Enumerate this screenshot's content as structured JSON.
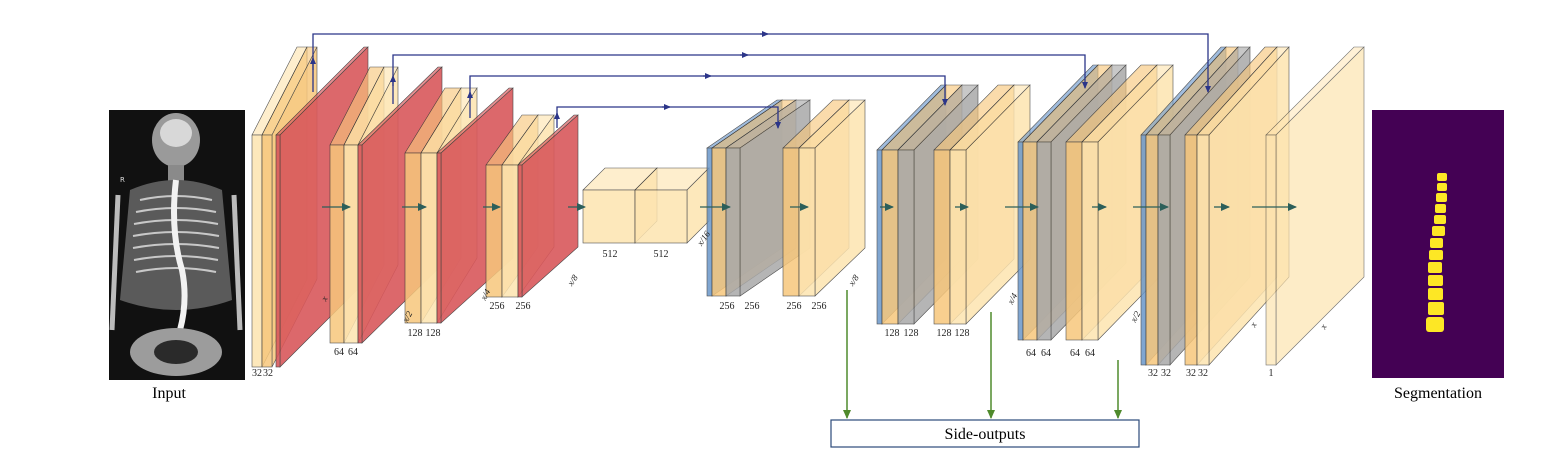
{
  "captions": {
    "input": "Input",
    "segmentation": "Segmentation",
    "side_outputs": "Side-outputs"
  },
  "encoder": [
    {
      "channels": [
        "32",
        "32"
      ],
      "size": ""
    },
    {
      "channels": [
        "64",
        "64"
      ],
      "size": "x"
    },
    {
      "channels": [
        "128",
        "128"
      ],
      "size": "x/2"
    },
    {
      "channels": [
        "256",
        "256"
      ],
      "size": "x/4"
    },
    {
      "channels": [
        "512",
        "512"
      ],
      "size": "x/8",
      "bottleneck_size": "x/16"
    }
  ],
  "decoder": [
    {
      "channels": [
        "256",
        "256",
        "256",
        "256"
      ],
      "size": "x/8"
    },
    {
      "channels": [
        "128",
        "128",
        "128",
        "128"
      ],
      "size": "x/4"
    },
    {
      "channels": [
        "64",
        "64",
        "64",
        "64"
      ],
      "size": "x/2"
    },
    {
      "channels": [
        "32",
        "32",
        "32",
        "32"
      ],
      "size": "x"
    },
    {
      "channels": [
        "1"
      ],
      "size": "x"
    }
  ],
  "colors": {
    "conv": "#fde4b0",
    "conv_dark": "#f7c77c",
    "pool": "#d9585b",
    "upsample": "#6b97c9",
    "concat": "#a9a9a9",
    "skip_arrow": "#2b3589",
    "flow_arrow": "#2c5f5a",
    "side_arrow": "#4f8a2c",
    "seg_bg": "#440154",
    "seg_fg": "#fde725"
  },
  "icons": {
    "input_image": "spine-xray",
    "output_image": "spine-segmentation-mask"
  }
}
